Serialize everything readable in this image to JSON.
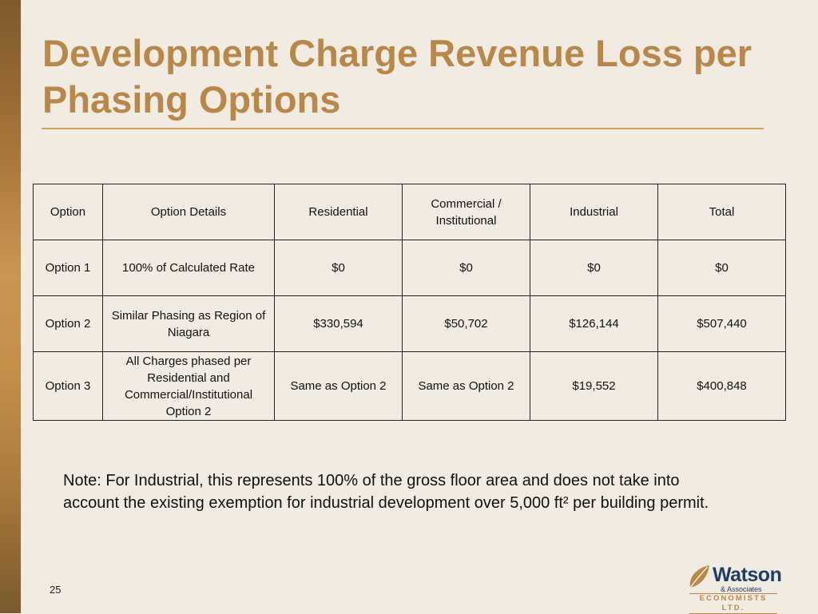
{
  "slide": {
    "title": "Development Charge Revenue Loss per Phasing Options",
    "note": "Note:  For Industrial, this represents 100% of the gross floor area and does not take into account the existing exemption for industrial development over 5,000 ft² per building permit.",
    "page_number": "25"
  },
  "table": {
    "headers": [
      "Option",
      "Option Details",
      "Residential",
      "Commercial / Institutional",
      "Industrial",
      "Total"
    ],
    "rows": [
      [
        "Option 1",
        "100% of Calculated Rate",
        "$0",
        "$0",
        "$0",
        "$0"
      ],
      [
        "Option 2",
        "Similar Phasing as Region of Niagara",
        "$330,594",
        "$50,702",
        "$126,144",
        "$507,440"
      ],
      [
        "Option 3",
        "All Charges phased per Residential and Commercial/Institutional Option 2",
        "Same as Option 2",
        "Same as Option 2",
        "$19,552",
        "$400,848"
      ]
    ]
  },
  "logo": {
    "name": "Watson",
    "subtitle": "& Associates",
    "tagline": "ECONOMISTS LTD.",
    "leaf_color": "#b8874a",
    "text_color": "#1f3d66"
  },
  "colors": {
    "title": "#b8874a",
    "background": "#f2ebe1",
    "accent_bar": "#c38f49"
  }
}
